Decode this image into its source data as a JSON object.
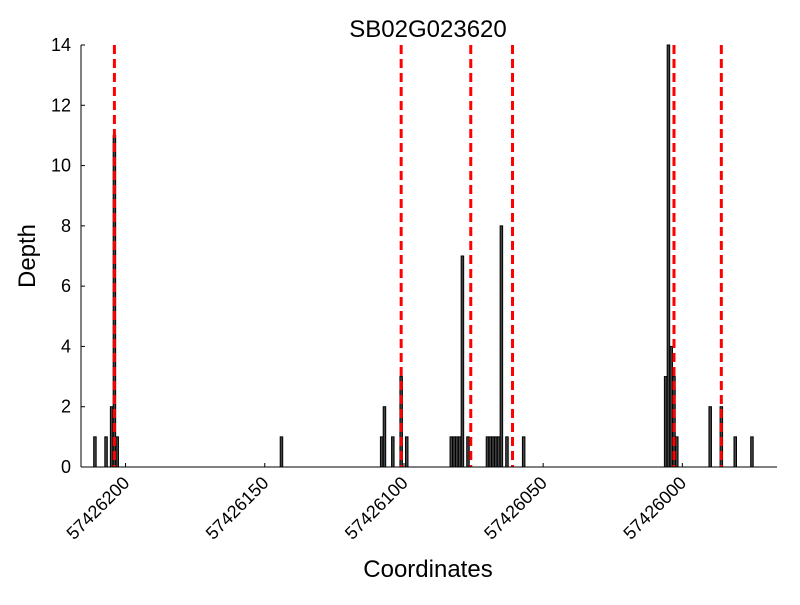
{
  "chart_data": {
    "type": "bar",
    "title": "SB02G023620",
    "xlabel": "Coordinates",
    "ylabel": "Depth",
    "x_reversed": true,
    "xlim": [
      57426216,
      57425966
    ],
    "ylim": [
      0,
      14
    ],
    "x_ticks": [
      57426200,
      57426150,
      57426100,
      57426050,
      57426000
    ],
    "y_ticks": [
      0,
      2,
      4,
      6,
      8,
      10,
      12,
      14
    ],
    "grid": false,
    "legend": "none",
    "colors": {
      "bar_fill": "#444444",
      "bar_edge": "#000000",
      "marker": "#ff0000"
    },
    "bars": [
      {
        "x": 57426211,
        "depth": 1
      },
      {
        "x": 57426207,
        "depth": 1
      },
      {
        "x": 57426205,
        "depth": 2
      },
      {
        "x": 57426204,
        "depth": 11
      },
      {
        "x": 57426203,
        "depth": 1
      },
      {
        "x": 57426144,
        "depth": 1
      },
      {
        "x": 57426108,
        "depth": 1
      },
      {
        "x": 57426107,
        "depth": 2
      },
      {
        "x": 57426104,
        "depth": 1
      },
      {
        "x": 57426101,
        "depth": 3
      },
      {
        "x": 57426099,
        "depth": 1
      },
      {
        "x": 57426083,
        "depth": 1
      },
      {
        "x": 57426082,
        "depth": 1
      },
      {
        "x": 57426081,
        "depth": 1
      },
      {
        "x": 57426080,
        "depth": 1
      },
      {
        "x": 57426079,
        "depth": 7
      },
      {
        "x": 57426077,
        "depth": 1
      },
      {
        "x": 57426070,
        "depth": 1
      },
      {
        "x": 57426069,
        "depth": 1
      },
      {
        "x": 57426068,
        "depth": 1
      },
      {
        "x": 57426067,
        "depth": 1
      },
      {
        "x": 57426066,
        "depth": 1
      },
      {
        "x": 57426065,
        "depth": 8
      },
      {
        "x": 57426063,
        "depth": 1
      },
      {
        "x": 57426057,
        "depth": 1
      },
      {
        "x": 57426006,
        "depth": 3
      },
      {
        "x": 57426005,
        "depth": 14
      },
      {
        "x": 57426004,
        "depth": 4
      },
      {
        "x": 57426003,
        "depth": 3
      },
      {
        "x": 57426002,
        "depth": 1
      },
      {
        "x": 57425990,
        "depth": 2
      },
      {
        "x": 57425986,
        "depth": 2
      },
      {
        "x": 57425981,
        "depth": 1
      },
      {
        "x": 57425975,
        "depth": 1
      }
    ],
    "marker_lines": [
      57426204,
      57426101,
      57426076,
      57426061,
      57426003,
      57425986
    ]
  }
}
